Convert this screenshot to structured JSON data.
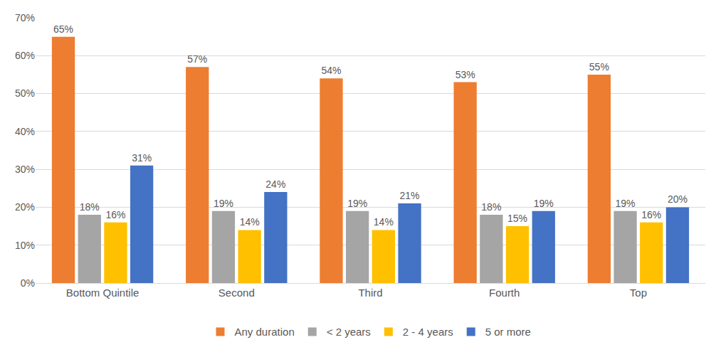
{
  "chart_data": {
    "type": "bar",
    "categories": [
      "Bottom Quintile",
      "Second",
      "Third",
      "Fourth",
      "Top"
    ],
    "series": [
      {
        "name": "Any duration",
        "color": "#ed7d31",
        "values": [
          65,
          57,
          54,
          53,
          55
        ],
        "value_labels": [
          "65%",
          "57%",
          "54%",
          "53%",
          "55%"
        ]
      },
      {
        "name": "< 2 years",
        "color": "#a5a5a5",
        "values": [
          18,
          19,
          19,
          18,
          19
        ],
        "value_labels": [
          "18%",
          "19%",
          "19%",
          "18%",
          "19%"
        ]
      },
      {
        "name": "2 - 4 years",
        "color": "#ffc000",
        "values": [
          16,
          14,
          14,
          15,
          16
        ],
        "value_labels": [
          "16%",
          "14%",
          "14%",
          "15%",
          "16%"
        ]
      },
      {
        "name": "5 or more",
        "color": "#4472c4",
        "values": [
          31,
          24,
          21,
          19,
          20
        ],
        "value_labels": [
          "31%",
          "24%",
          "21%",
          "19%",
          "20%"
        ]
      }
    ],
    "ylim": [
      0,
      70
    ],
    "yticks": [
      {
        "value": 0,
        "label": "0%"
      },
      {
        "value": 10,
        "label": "10%"
      },
      {
        "value": 20,
        "label": "20%"
      },
      {
        "value": 30,
        "label": "30%"
      },
      {
        "value": 40,
        "label": "40%"
      },
      {
        "value": 50,
        "label": "50%"
      },
      {
        "value": 60,
        "label": "60%"
      },
      {
        "value": 70,
        "label": "70%"
      }
    ],
    "grid": true,
    "legend": "bottom",
    "data_labels": true
  }
}
